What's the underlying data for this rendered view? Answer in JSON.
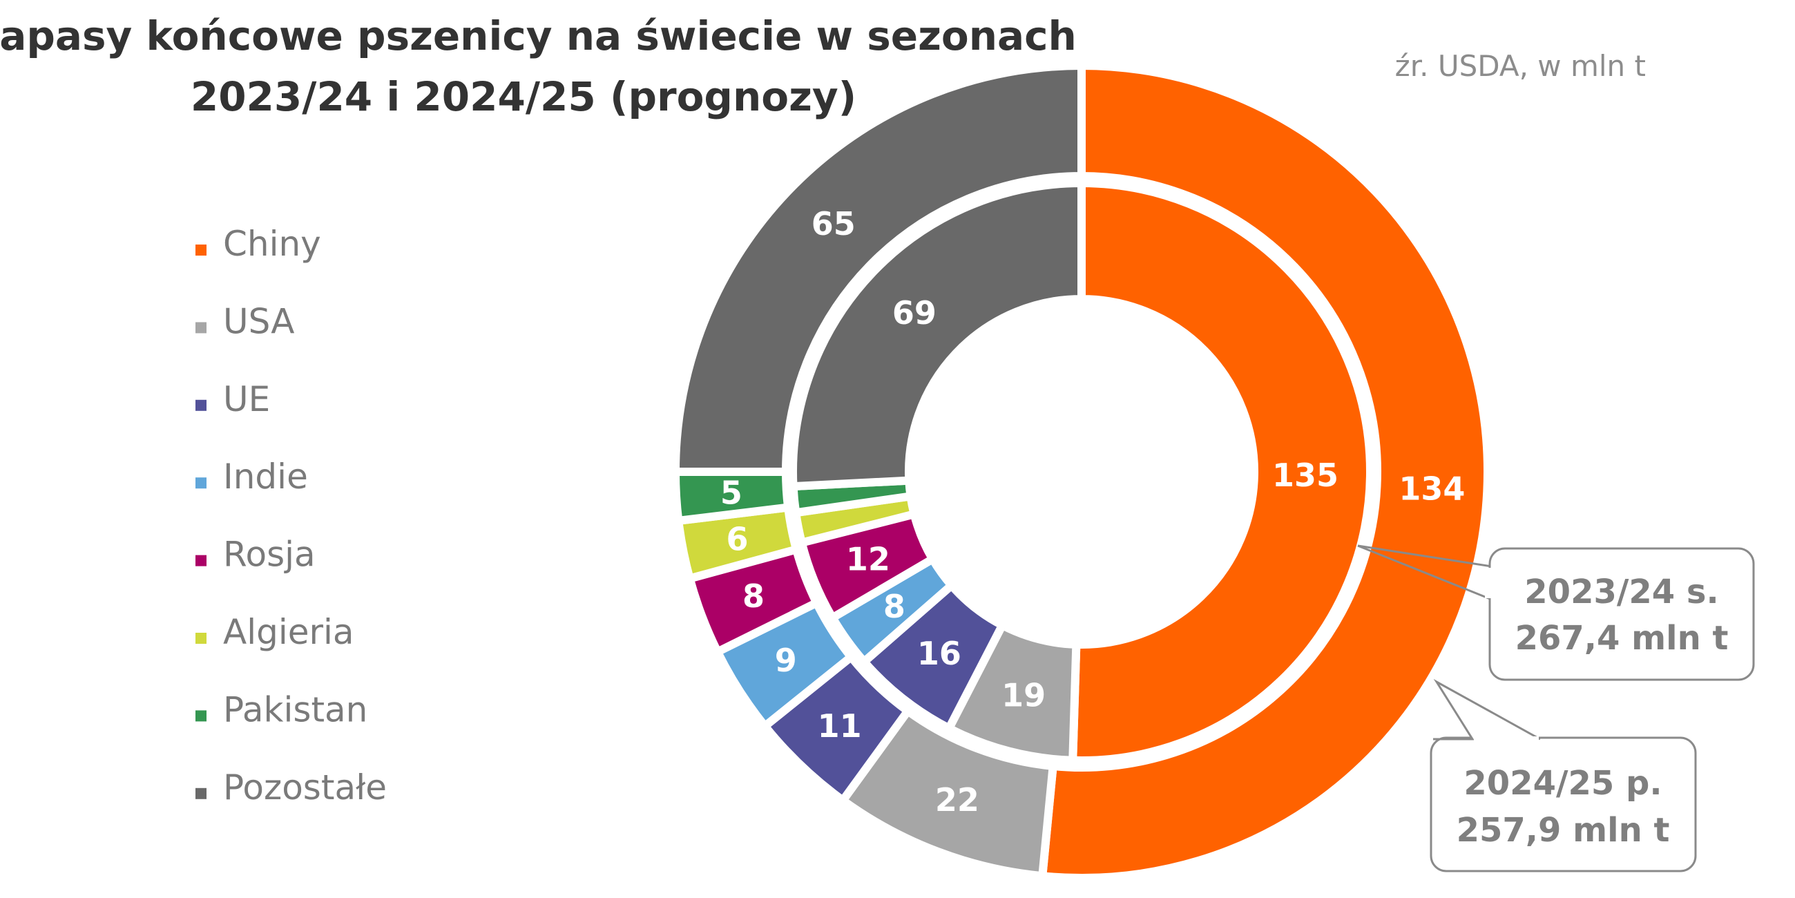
{
  "chart_data": {
    "type": "donut",
    "title_lines": [
      "Zapasy końcowe pszenicy na świecie w sezonach",
      "2023/24 i 2024/25 (prognozy)"
    ],
    "source_note": "źr. USDA, w mln t",
    "categories": [
      "Chiny",
      "USA",
      "UE",
      "Indie",
      "Rosja",
      "Algieria",
      "Pakistan",
      "Pozostałe"
    ],
    "colors": [
      "#FF6200",
      "#A6A6A6",
      "#525199",
      "#60A6DA",
      "#AB0066",
      "#D0D93C",
      "#349651",
      "#696969"
    ],
    "legend_position": "left",
    "series": [
      {
        "ring": "inner",
        "values": [
          135,
          19,
          16,
          8,
          12,
          4.5,
          3.9,
          69
        ],
        "labels": [
          "135",
          "19",
          "16",
          "8",
          "12",
          "",
          "",
          "69"
        ]
      },
      {
        "ring": "outer",
        "values": [
          134,
          22,
          11,
          9,
          8,
          6,
          5,
          65
        ],
        "labels": [
          "134",
          "22",
          "11",
          "9",
          "8",
          "6",
          "5",
          "65"
        ]
      }
    ],
    "callouts": [
      {
        "line1": "2023/24 s.",
        "line2": "267,4 mln t"
      },
      {
        "line1": "2024/25 p.",
        "line2": "257,9 mln t"
      }
    ]
  }
}
